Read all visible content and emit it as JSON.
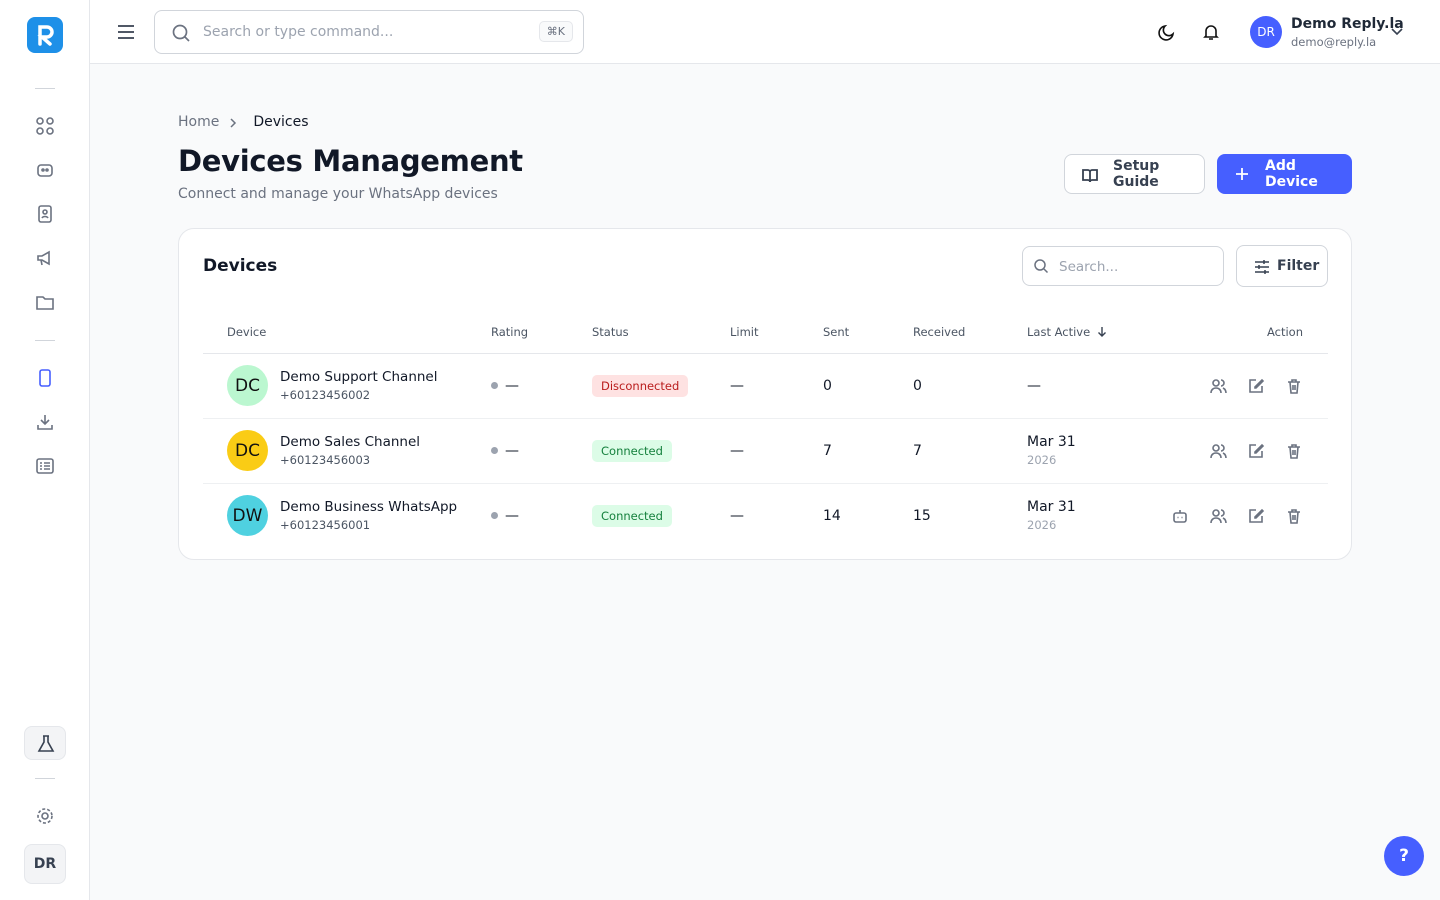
{
  "topbar": {
    "search_placeholder": "Search or type command...",
    "shortcut": "⌘K",
    "avatar": "DR",
    "user_name": "Demo Reply.la",
    "user_email": "demo@reply.la"
  },
  "sidebar": {
    "user_initials": "DR"
  },
  "breadcrumb": [
    "Home",
    "Devices"
  ],
  "header": {
    "title": "Devices Management",
    "subtitle": "Connect and manage your WhatsApp devices",
    "setup_guide": "Setup Guide",
    "add_device": "Add Device"
  },
  "card": {
    "title": "Devices",
    "search_placeholder": "Search...",
    "filter": "Filter"
  },
  "table": {
    "columns": [
      "Device",
      "Rating",
      "Status",
      "Limit",
      "Sent",
      "Received",
      "Last Active",
      "Action"
    ],
    "rows": [
      {
        "initials": "DC",
        "name": "Demo Support Channel",
        "phone": "+60123456002",
        "rating": "—",
        "status": "Disconnected",
        "limit": "—",
        "sent": 0,
        "received": 0,
        "last_active": [
          "—"
        ]
      },
      {
        "initials": "DC",
        "name": "Demo Sales Channel",
        "phone": "+60123456003",
        "rating": "—",
        "status": "Connected",
        "limit": "—",
        "sent": 7,
        "received": 7,
        "last_active": [
          "Mar 31",
          "2026"
        ]
      },
      {
        "initials": "DW",
        "name": "Demo Business WhatsApp",
        "phone": "+60123456001",
        "rating": "—",
        "status": "Connected",
        "limit": "—",
        "sent": 14,
        "received": 15,
        "last_active": [
          "Mar 31",
          "2026"
        ]
      }
    ]
  },
  "help": "?"
}
